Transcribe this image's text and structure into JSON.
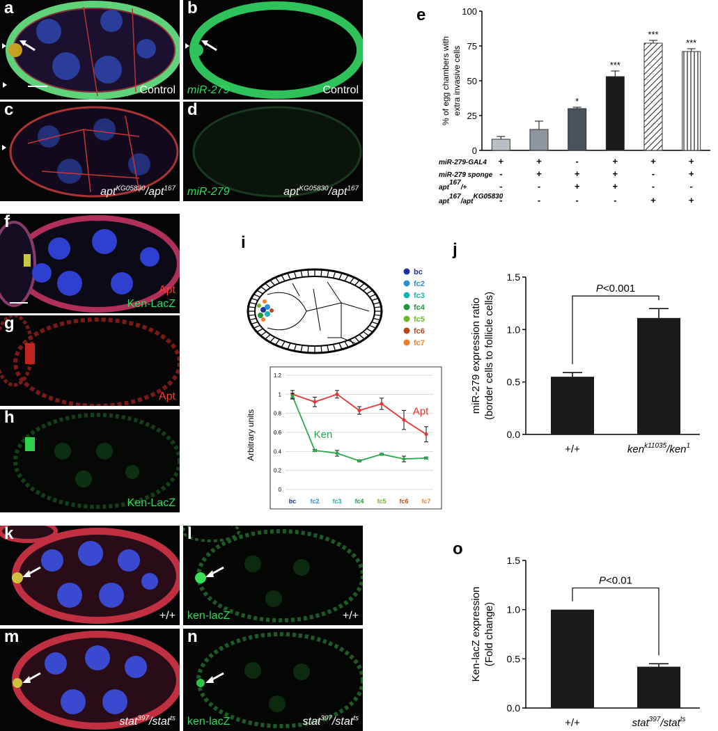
{
  "panels": {
    "a": {
      "label": "a",
      "caption": "Control"
    },
    "b": {
      "label": "b",
      "caption_green": "miR-279",
      "caption": "Control"
    },
    "c": {
      "label": "c",
      "genotype_base1": "apt",
      "genotype_sup1": "KG05830",
      "genotype_mid": "/apt",
      "genotype_sup2": "167"
    },
    "d": {
      "label": "d",
      "caption_green": "miR-279",
      "genotype_base1": "apt",
      "genotype_sup1": "KG05830",
      "genotype_mid": "/apt",
      "genotype_sup2": "167"
    },
    "f": {
      "label": "f",
      "caption_red": "Apt",
      "caption_green": "Ken-LacZ"
    },
    "g": {
      "label": "g",
      "caption_red": "Apt"
    },
    "h": {
      "label": "h",
      "caption_green": "Ken-LacZ"
    },
    "i": {
      "label": "i"
    },
    "j": {
      "label": "j"
    },
    "k": {
      "label": "k",
      "caption": "+/+"
    },
    "l": {
      "label": "l",
      "caption_green": "ken-lacZ",
      "caption": "+/+"
    },
    "m": {
      "label": "m",
      "genotype_base1": "stat",
      "genotype_sup1": "397",
      "genotype_mid": "/stat",
      "genotype_sup2": "ts"
    },
    "n": {
      "label": "n",
      "caption_green": "ken-lacZ",
      "genotype_base1": "stat",
      "genotype_sup1": "397",
      "genotype_mid": "/stat",
      "genotype_sup2": "ts"
    },
    "o": {
      "label": "o"
    },
    "e": {
      "label": "e"
    }
  },
  "colors": {
    "red_text": "#ff3b2f",
    "green_text": "#2fdc5a",
    "apt_line": "#e8322e",
    "ken_line": "#2aa84a",
    "bar_dark": "#1a1a1a"
  },
  "chart_data": [
    {
      "panel": "e",
      "type": "bar",
      "ylabel_line1": "% of egg chambers with",
      "ylabel_line2": "extra invasive cells",
      "ylim": [
        0,
        100
      ],
      "yticks": [
        "0",
        "25",
        "50",
        "75",
        "100"
      ],
      "values": [
        8,
        15,
        30,
        53,
        77,
        71
      ],
      "errors": [
        2,
        6,
        1,
        4,
        2,
        2
      ],
      "significance": [
        "",
        "",
        "*",
        "***",
        "***",
        "***"
      ],
      "bar_styles": [
        "light",
        "mid",
        "darkgrey",
        "black",
        "hatch",
        "stripe"
      ],
      "genotype_rows": [
        {
          "label": "miR-279-GAL4",
          "marks": [
            "+",
            "+",
            "-",
            "+",
            "+",
            "+"
          ]
        },
        {
          "label": "miR-279 sponge",
          "marks": [
            "-",
            "+",
            "+",
            "+",
            "-",
            "+"
          ]
        },
        {
          "label_base": "apt",
          "label_sup": "167",
          "label_tail": "/+",
          "marks": [
            "-",
            "-",
            "+",
            "+",
            "-",
            "-"
          ]
        },
        {
          "label_base": "apt",
          "label_sup": "167",
          "label_tail": "/apt",
          "label_sup2": "KG05830",
          "marks": [
            "-",
            "-",
            "-",
            "-",
            "+",
            "+"
          ]
        }
      ]
    },
    {
      "panel": "i",
      "type": "line",
      "ylabel": "Arbitrary units",
      "ylim": [
        0,
        1.2
      ],
      "yticks": [
        "0",
        "0.2",
        "0.4",
        "0.6",
        "0.8",
        "1",
        "1.2"
      ],
      "categories": [
        "bc",
        "fc2",
        "fc3",
        "fc4",
        "fc5",
        "fc6",
        "fc7"
      ],
      "category_colors": [
        "#1f2f9a",
        "#2a8fd8",
        "#18b3b3",
        "#1f9a3a",
        "#6ab82a",
        "#b5471a",
        "#f07d2a"
      ],
      "series": [
        {
          "name": "Apt",
          "values": [
            1.0,
            0.92,
            1.0,
            0.83,
            0.9,
            0.73,
            0.58
          ],
          "errors": [
            0.04,
            0.05,
            0.04,
            0.04,
            0.06,
            0.1,
            0.08
          ]
        },
        {
          "name": "Ken",
          "values": [
            0.98,
            0.41,
            0.38,
            0.3,
            0.37,
            0.32,
            0.33
          ],
          "errors": [
            0.03,
            0.01,
            0.03,
            0.01,
            0.01,
            0.03,
            0.01
          ]
        }
      ],
      "legend": [
        "bc",
        "fc2",
        "fc3",
        "fc4",
        "fc5",
        "fc6",
        "fc7"
      ]
    },
    {
      "panel": "j",
      "type": "bar",
      "ylabel_line1": "miR-279 expression ratio",
      "ylabel_line2": "(border cells to follicle cells)",
      "ylim": [
        0,
        1.5
      ],
      "yticks": [
        "0.0",
        "0.5",
        "1.0",
        "1.5"
      ],
      "categories": [
        "+/+",
        "ken"
      ],
      "category_sup": [
        "",
        "k11035"
      ],
      "category_tail": [
        "",
        "/ken"
      ],
      "category_sup2": [
        "",
        "1"
      ],
      "values": [
        0.55,
        1.11
      ],
      "errors": [
        0.04,
        0.09
      ],
      "pvalue_p": "P",
      "pvalue_rest": "<0.001"
    },
    {
      "panel": "o",
      "type": "bar",
      "ylabel_line1": "Ken-lacZ expression",
      "ylabel_line2": "(Fold change)",
      "ylim": [
        0,
        1.5
      ],
      "yticks": [
        "0.0",
        "0.5",
        "1.0",
        "1.5"
      ],
      "categories": [
        "+/+",
        "stat"
      ],
      "category_sup": [
        "",
        "397"
      ],
      "category_tail": [
        "",
        "/stat"
      ],
      "category_sup2": [
        "",
        "ts"
      ],
      "values": [
        1.0,
        0.42
      ],
      "errors": [
        0,
        0.03
      ],
      "pvalue_p": "P",
      "pvalue_rest": "<0.01"
    }
  ]
}
